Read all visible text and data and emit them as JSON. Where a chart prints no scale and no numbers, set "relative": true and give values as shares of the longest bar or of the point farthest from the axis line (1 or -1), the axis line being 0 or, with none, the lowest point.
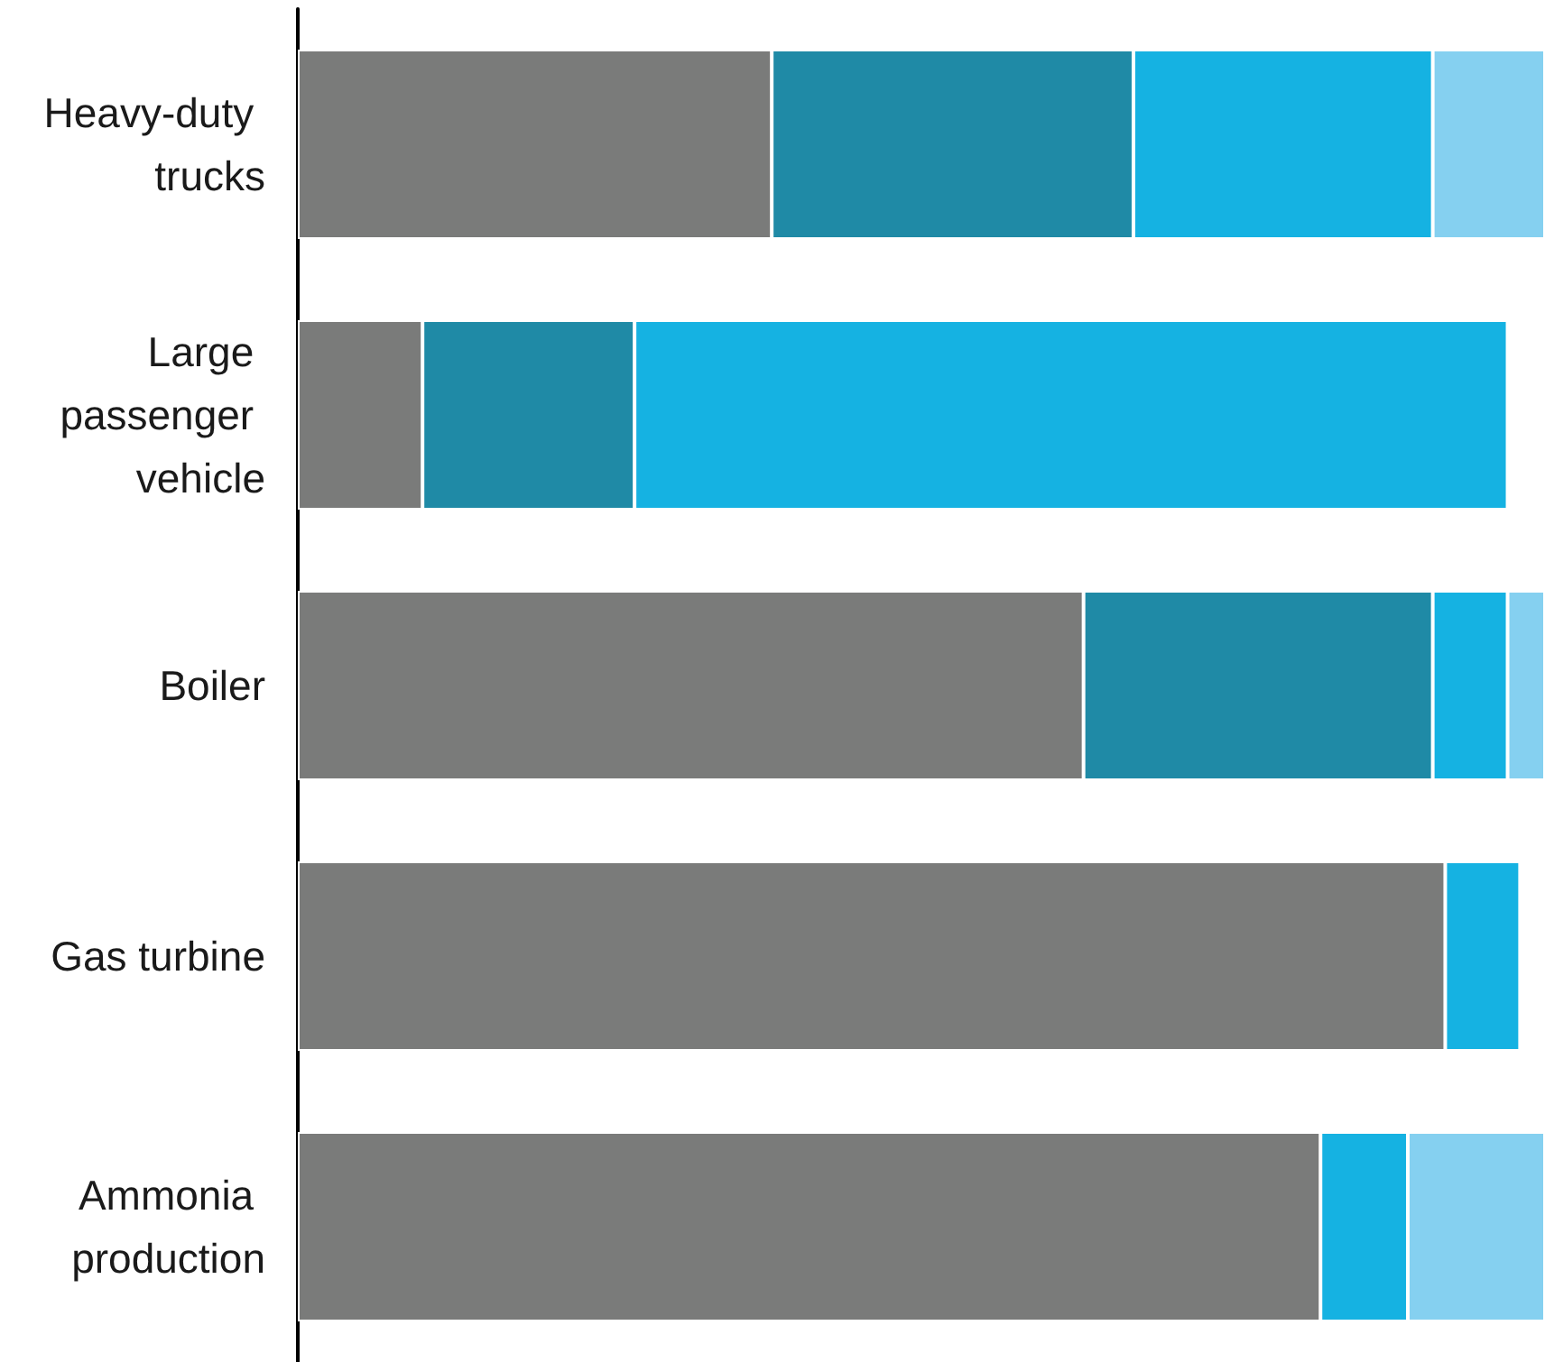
{
  "chart_data": {
    "type": "bar",
    "orientation": "horizontal",
    "stacked": true,
    "relative": true,
    "categories": [
      "Heavy-duty trucks",
      "Large passenger vehicle",
      "Boiler",
      "Gas turbine",
      "Ammonia production"
    ],
    "series": [
      {
        "color": "#7a7b7a",
        "values": [
          0.38,
          0.1,
          0.63,
          0.92,
          0.82
        ]
      },
      {
        "color": "#1f8aa6",
        "values": [
          0.29,
          0.17,
          0.28,
          null,
          null
        ]
      },
      {
        "color": "#15b2e2",
        "values": [
          0.24,
          0.7,
          0.06,
          0.06,
          0.07
        ]
      },
      {
        "color": "#85d0f0",
        "values": [
          0.09,
          null,
          0.03,
          null,
          0.11
        ]
      }
    ]
  }
}
